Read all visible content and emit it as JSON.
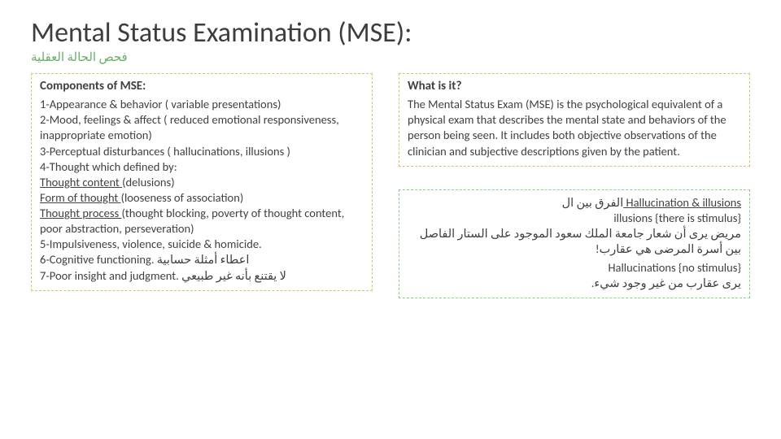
{
  "title": "Mental Status Examination (MSE):",
  "subtitle_ar": "فحص الحالة العقلية",
  "left": {
    "heading": "Components of MSE:",
    "lines": [
      "1-Appearance & behavior ( variable presentations)",
      "2-Mood, feelings & affect ( reduced emotional responsiveness, inappropriate emotion)",
      "3-Perceptual disturbances ( hallucinations, illusions )",
      "4-Thought which defined by:",
      "Thought content (delusions)",
      "Form of thought (looseness of association)",
      "Thought process (thought blocking, poverty of thought content, poor abstraction, perseveration)",
      "5-Impulsiveness, violence, suicide & homicide.",
      "6-Cognitive functioning. اعطاء أمثلة حسابية",
      "7-Poor insight and judgment. لا يقتنع بأنه غير طبيعي"
    ],
    "underline_idx": [
      4,
      5,
      6
    ]
  },
  "right_top": {
    "heading": "What is it?",
    "body": "The Mental Status Exam (MSE) is the psychological equivalent of a physical exam that describes the mental state and behaviors of the person being seen. It includes both objective observations of the clinician and subjective descriptions given by the patient."
  },
  "right_bot": {
    "title_prefix": "Hallucination & illusions ",
    "title_ar": "الفرق بين ال",
    "line1": "illusions {there is stimulus}",
    "line2_ar": "مريض يرى أن شعار جامعة الملك سعود الموجود على الستار الفاصل بين أسرة المرضى هي عقارب!",
    "line3": "Hallucinations {no stimulus}",
    "line4_ar": "يرى عقارب من غير وجود شيء."
  },
  "colors": {
    "title": "#3d3d3d",
    "subtitle": "#6aaf6a",
    "yellow_border": "#d9c36a",
    "green_border": "#8fcf8f",
    "text": "#404040",
    "bg": "#ffffff"
  }
}
